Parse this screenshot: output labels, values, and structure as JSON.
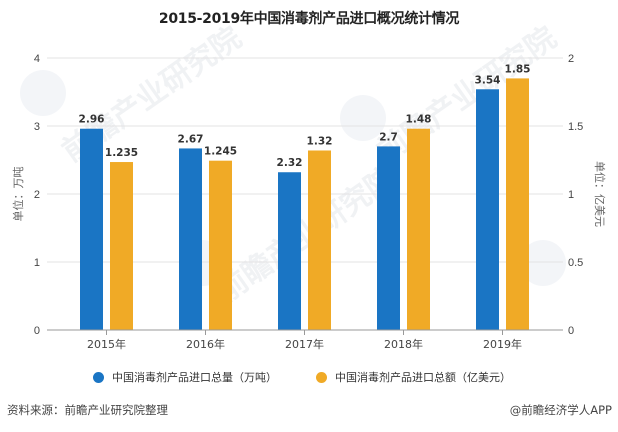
{
  "chart_data": {
    "type": "bar",
    "title": "2015-2019年中国消毒剂产品进口概况统计情况",
    "categories": [
      "2015年",
      "2016年",
      "2017年",
      "2018年",
      "2019年"
    ],
    "series": [
      {
        "name": "中国消毒剂产品进口总量（万吨）",
        "axis": "left",
        "color": "#1a75c4",
        "values": [
          2.96,
          2.67,
          2.32,
          2.7,
          3.54
        ],
        "labels": [
          "2.96",
          "2.67",
          "2.32",
          "2.7",
          "3.54"
        ]
      },
      {
        "name": "中国消毒剂产品进口总额（亿美元）",
        "axis": "right",
        "color": "#f0aa26",
        "values": [
          1.235,
          1.245,
          1.32,
          1.48,
          1.85
        ],
        "labels": [
          "1.235",
          "1.245",
          "1.32",
          "1.48",
          "1.85"
        ]
      }
    ],
    "y_left": {
      "label": "单位：万吨",
      "ylim": [
        0,
        4
      ],
      "ticks": [
        "0",
        "1",
        "2",
        "3",
        "4"
      ]
    },
    "y_right": {
      "label": "单位：亿美元",
      "ylim": [
        0,
        2
      ],
      "ticks": [
        "0",
        "0.5",
        "1",
        "1.5",
        "2"
      ]
    },
    "grid": true,
    "legend_position": "bottom"
  },
  "footer": {
    "source": "资料来源：前瞻产业研究院整理",
    "brand": "@前瞻经济学人APP"
  },
  "watermark": {
    "text": "前瞻产业研究院"
  }
}
